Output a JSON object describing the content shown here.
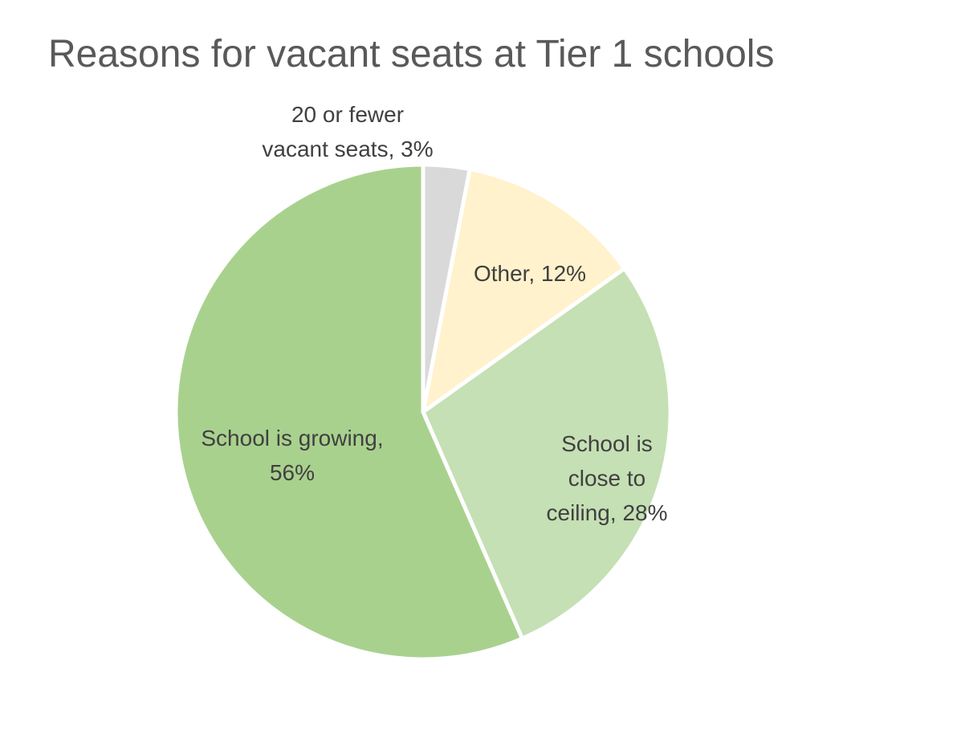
{
  "chart_data": {
    "type": "pie",
    "title": "Reasons for vacant seats at Tier 1 schools",
    "start": "12 o'clock",
    "direction": "clockwise",
    "legend": "none",
    "slices": [
      {
        "label_lines": [
          "20 or fewer",
          "vacant seats, 3%"
        ],
        "value": 3,
        "color": "#d9d9d9",
        "label_position": "outside"
      },
      {
        "label_lines": [
          "Other, 12%"
        ],
        "value": 12,
        "color": "#fff2cc",
        "label_position": "inside"
      },
      {
        "label_lines": [
          "School is",
          "close to",
          "ceiling, 28%"
        ],
        "value": 28,
        "color": "#c5e0b4",
        "label_position": "inside"
      },
      {
        "label_lines": [
          "School is growing,",
          "56%"
        ],
        "value": 56,
        "color": "#a9d18e",
        "label_position": "inside"
      }
    ]
  }
}
